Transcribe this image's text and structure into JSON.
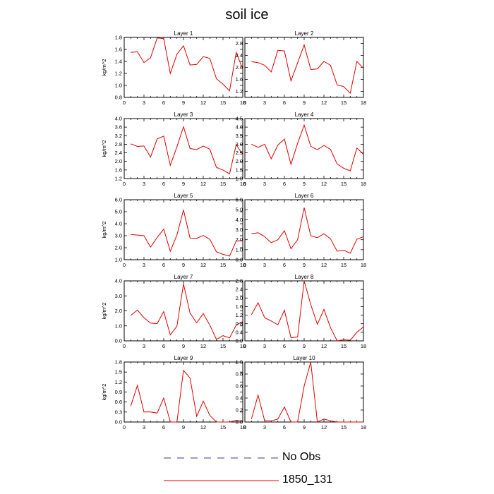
{
  "title": "soil ice",
  "legend": [
    {
      "label": "No Obs",
      "color": "#3a3a9e",
      "dash": "dashed"
    },
    {
      "label": "1850_131",
      "color": "#e00000",
      "dash": "solid"
    }
  ],
  "chart_data": [
    {
      "type": "line",
      "title": "Layer 1",
      "ylabel": "kg/m^2",
      "xlim": [
        0,
        18
      ],
      "ylim": [
        0.8,
        1.8
      ],
      "yticks": [
        "0.8",
        "1.0",
        "1.2",
        "1.4",
        "1.6",
        "1.8"
      ],
      "xticks": [
        "0",
        "3",
        "6",
        "9",
        "12",
        "15",
        "18"
      ],
      "x": [
        1,
        2,
        3,
        4,
        5,
        6,
        7,
        8,
        9,
        10,
        11,
        12,
        13,
        14,
        15,
        16,
        17,
        18
      ],
      "series": [
        {
          "color": "#e00000",
          "values": [
            1.55,
            1.56,
            1.38,
            1.46,
            1.79,
            1.78,
            1.2,
            1.52,
            1.66,
            1.34,
            1.35,
            1.48,
            1.45,
            1.11,
            1.02,
            0.91,
            1.55,
            1.27
          ]
        }
      ]
    },
    {
      "type": "line",
      "title": "Layer 2",
      "ylabel": "",
      "xlim": [
        0,
        18
      ],
      "ylim": [
        1.0,
        3.0
      ],
      "yticks": [
        "1.2",
        "1.6",
        "2.0",
        "2.4",
        "2.8"
      ],
      "xticks": [
        "0",
        "3",
        "6",
        "9",
        "12",
        "15",
        "18"
      ],
      "x": [
        1,
        2,
        3,
        4,
        5,
        6,
        7,
        8,
        9,
        10,
        11,
        12,
        13,
        14,
        15,
        16,
        17,
        18
      ],
      "series": [
        {
          "color": "#e00000",
          "values": [
            2.19,
            2.16,
            2.07,
            1.85,
            2.57,
            2.55,
            1.55,
            2.15,
            2.75,
            1.93,
            1.95,
            2.2,
            2.07,
            1.42,
            1.36,
            1.14,
            2.2,
            1.97
          ]
        }
      ]
    },
    {
      "type": "line",
      "title": "Layer 3",
      "ylabel": "kg/m^2",
      "xlim": [
        0,
        18
      ],
      "ylim": [
        1.2,
        4.0
      ],
      "yticks": [
        "1.2",
        "1.6",
        "2.0",
        "2.4",
        "2.8",
        "3.2",
        "3.6",
        "4.0"
      ],
      "xticks": [
        "0",
        "3",
        "6",
        "9",
        "12",
        "15",
        "18"
      ],
      "x": [
        1,
        2,
        3,
        4,
        5,
        6,
        7,
        8,
        9,
        10,
        11,
        12,
        13,
        14,
        15,
        16,
        17,
        18
      ],
      "series": [
        {
          "color": "#e00000",
          "values": [
            2.82,
            2.7,
            2.72,
            2.2,
            3.05,
            3.18,
            1.82,
            2.68,
            3.62,
            2.6,
            2.55,
            2.72,
            2.57,
            1.72,
            1.6,
            1.42,
            2.78,
            2.32
          ]
        }
      ]
    },
    {
      "type": "line",
      "title": "Layer 4",
      "ylabel": "",
      "xlim": [
        0,
        18
      ],
      "ylim": [
        1.0,
        4.5
      ],
      "yticks": [
        "1.0",
        "1.5",
        "2.0",
        "2.5",
        "3.0",
        "3.5",
        "4.0",
        "4.5"
      ],
      "xticks": [
        "0",
        "3",
        "6",
        "9",
        "12",
        "15",
        "18"
      ],
      "x": [
        1,
        2,
        3,
        4,
        5,
        6,
        7,
        8,
        9,
        10,
        11,
        12,
        13,
        14,
        15,
        16,
        17,
        18
      ],
      "series": [
        {
          "color": "#e00000",
          "values": [
            3.0,
            2.82,
            3.0,
            2.15,
            2.95,
            3.3,
            1.83,
            3.05,
            4.12,
            2.88,
            2.68,
            2.93,
            2.7,
            1.85,
            1.6,
            1.45,
            2.78,
            2.42
          ]
        }
      ]
    },
    {
      "type": "line",
      "title": "Layer 5",
      "ylabel": "kg/m^2",
      "xlim": [
        0,
        18
      ],
      "ylim": [
        1.0,
        6.0
      ],
      "yticks": [
        "1.0",
        "2.0",
        "3.0",
        "4.0",
        "5.0",
        "6.0"
      ],
      "xticks": [
        "0",
        "3",
        "6",
        "9",
        "12",
        "15",
        "18"
      ],
      "x": [
        1,
        2,
        3,
        4,
        5,
        6,
        7,
        8,
        9,
        10,
        11,
        12,
        13,
        14,
        15,
        16,
        17,
        18
      ],
      "series": [
        {
          "color": "#e00000",
          "values": [
            3.1,
            3.05,
            3.0,
            2.05,
            2.85,
            3.55,
            1.7,
            3.05,
            5.15,
            2.8,
            2.78,
            3.02,
            2.7,
            1.65,
            1.45,
            1.3,
            2.55,
            2.6
          ]
        }
      ]
    },
    {
      "type": "line",
      "title": "Layer 6",
      "ylabel": "",
      "xlim": [
        0,
        18
      ],
      "ylim": [
        0.0,
        6.0
      ],
      "yticks": [
        "0.0",
        "1.0",
        "2.0",
        "3.0",
        "4.0",
        "5.0",
        "6.0"
      ],
      "xticks": [
        "0",
        "3",
        "6",
        "9",
        "12",
        "15",
        "18"
      ],
      "x": [
        1,
        2,
        3,
        4,
        5,
        6,
        7,
        8,
        9,
        10,
        11,
        12,
        13,
        14,
        15,
        16,
        17,
        18
      ],
      "series": [
        {
          "color": "#e00000",
          "values": [
            2.6,
            2.7,
            2.3,
            1.7,
            2.0,
            2.9,
            1.1,
            2.0,
            5.2,
            2.4,
            2.2,
            2.6,
            2.1,
            0.85,
            0.95,
            0.65,
            2.05,
            2.3
          ]
        }
      ]
    },
    {
      "type": "line",
      "title": "Layer 7",
      "ylabel": "kg/m^2",
      "xlim": [
        0,
        18
      ],
      "ylim": [
        0.0,
        4.0
      ],
      "yticks": [
        "0.0",
        "1.0",
        "2.0",
        "3.0",
        "4.0"
      ],
      "xticks": [
        "0",
        "3",
        "6",
        "9",
        "12",
        "15",
        "18"
      ],
      "x": [
        1,
        2,
        3,
        4,
        5,
        6,
        7,
        8,
        9,
        10,
        11,
        12,
        13,
        14,
        15,
        16,
        17,
        18
      ],
      "series": [
        {
          "color": "#e00000",
          "values": [
            1.7,
            2.05,
            1.55,
            1.18,
            1.15,
            1.95,
            0.4,
            0.98,
            3.8,
            1.85,
            1.2,
            1.82,
            1.05,
            0.1,
            0.35,
            0.2,
            1.05,
            1.3
          ]
        }
      ]
    },
    {
      "type": "line",
      "title": "Layer 8",
      "ylabel": "",
      "xlim": [
        0,
        18
      ],
      "ylim": [
        0.0,
        2.8
      ],
      "yticks": [
        "0.0",
        "0.4",
        "0.8",
        "1.2",
        "1.6",
        "2.0",
        "2.4",
        "2.8"
      ],
      "xticks": [
        "0",
        "3",
        "6",
        "9",
        "12",
        "15",
        "18"
      ],
      "x": [
        1,
        2,
        3,
        4,
        5,
        6,
        7,
        8,
        9,
        10,
        11,
        12,
        13,
        14,
        15,
        16,
        17,
        18
      ],
      "series": [
        {
          "color": "#e00000",
          "values": [
            1.22,
            1.78,
            1.08,
            0.93,
            0.75,
            1.43,
            0.15,
            0.18,
            2.8,
            1.7,
            0.77,
            1.47,
            0.62,
            0.0,
            0.05,
            0.03,
            0.4,
            0.65
          ]
        }
      ]
    },
    {
      "type": "line",
      "title": "Layer 9",
      "ylabel": "kg/m^2",
      "xlim": [
        0,
        18
      ],
      "ylim": [
        0.0,
        1.8
      ],
      "yticks": [
        "0.0",
        "0.3",
        "0.6",
        "0.9",
        "1.2",
        "1.5",
        "1.8"
      ],
      "xticks": [
        "0",
        "3",
        "6",
        "9",
        "12",
        "15",
        "18"
      ],
      "x": [
        1,
        2,
        3,
        4,
        5,
        6,
        7,
        8,
        9,
        10,
        11,
        12,
        13,
        14,
        15,
        16,
        17,
        18
      ],
      "series": [
        {
          "color": "#e00000",
          "values": [
            0.48,
            1.1,
            0.3,
            0.3,
            0.27,
            0.72,
            0.0,
            0.0,
            1.55,
            1.32,
            0.17,
            0.63,
            0.2,
            0.0,
            0.0,
            0.0,
            0.05,
            0.03
          ]
        }
      ]
    },
    {
      "type": "line",
      "title": "Layer 10",
      "ylabel": "",
      "xlim": [
        0,
        18
      ],
      "ylim": [
        0.0,
        1.0
      ],
      "yticks": [
        "0.0",
        "0.2",
        "0.4",
        "0.6",
        "0.8",
        "1.0"
      ],
      "xticks": [
        "0",
        "3",
        "6",
        "9",
        "12",
        "15",
        "18"
      ],
      "x": [
        1,
        2,
        3,
        4,
        5,
        6,
        7,
        8,
        9,
        10,
        11,
        12,
        13,
        14,
        15,
        16,
        17,
        18
      ],
      "series": [
        {
          "color": "#e00000",
          "values": [
            0.05,
            0.45,
            0.02,
            0.02,
            0.05,
            0.25,
            0.0,
            0.0,
            0.6,
            1.0,
            0.0,
            0.05,
            0.02,
            0.0,
            0.0,
            0.0,
            0.0,
            0.0
          ]
        }
      ]
    }
  ]
}
